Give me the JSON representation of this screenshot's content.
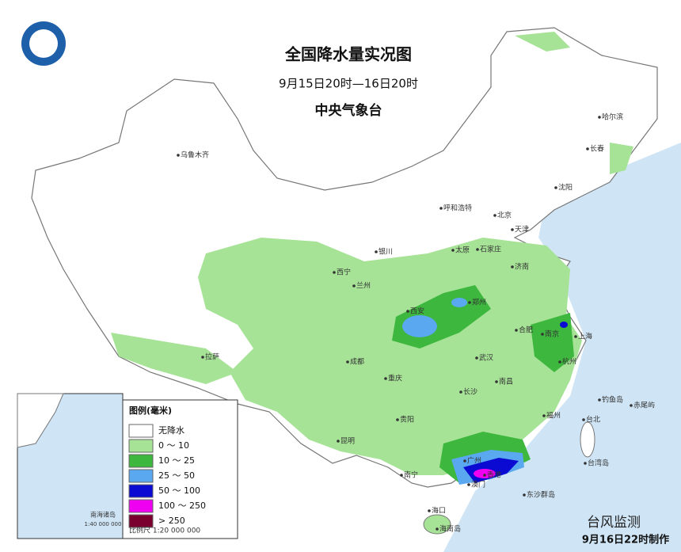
{
  "header": {
    "title": "全国降水量实况图",
    "subtitle": "9月15日20时—16日20时",
    "agency": "中央气象台"
  },
  "legend": {
    "title": "图例(毫米)",
    "items": [
      {
        "label": "无降水",
        "color": "#ffffff"
      },
      {
        "label": "0 ～ 10",
        "color": "#a6e396"
      },
      {
        "label": "10 ～ 25",
        "color": "#3db73d"
      },
      {
        "label": "25 ～ 50",
        "color": "#5aa8ef"
      },
      {
        "label": "50 ～ 100",
        "color": "#0a0ad2"
      },
      {
        "label": "100 ～ 250",
        "color": "#f000f0"
      },
      {
        "label": "> 250",
        "color": "#7a0030"
      }
    ]
  },
  "scale": "比例尺  1:20 000 000",
  "inset": {
    "label": "南海诸岛",
    "scale": "1:40 000 000"
  },
  "cities": [
    "乌鲁木齐",
    "哈尔滨",
    "长春",
    "沈阳",
    "北京",
    "天津",
    "呼和浩特",
    "石家庄",
    "太原",
    "银川",
    "济南",
    "西宁",
    "兰州",
    "西安",
    "郑州",
    "合肥",
    "南京",
    "上海",
    "武汉",
    "杭州",
    "拉萨",
    "成都",
    "重庆",
    "长沙",
    "南昌",
    "福州",
    "台北",
    "贵阳",
    "昆明",
    "南宁",
    "广州",
    "香港",
    "澳门",
    "海口",
    "海南岛",
    "台湾岛",
    "东沙群岛",
    "钓鱼岛",
    "赤尾屿"
  ],
  "watermark": "台风监测",
  "footer": "9月16日22时制作"
}
